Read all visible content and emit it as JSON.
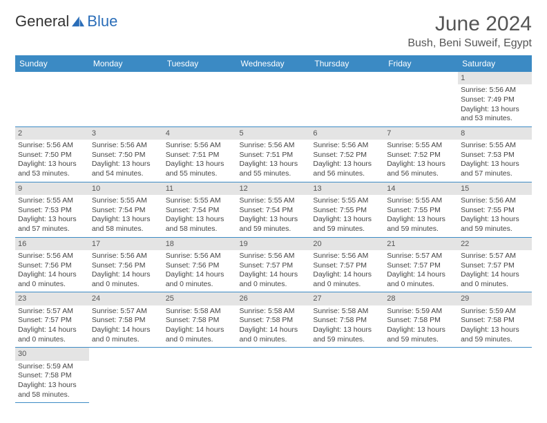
{
  "brand": {
    "part1": "General",
    "part2": "Blue"
  },
  "title": "June 2024",
  "location": "Bush, Beni Suweif, Egypt",
  "colors": {
    "header_bg": "#3b8ac4",
    "daynum_bg": "#e4e4e4",
    "rule": "#3b8ac4"
  },
  "days": [
    "Sunday",
    "Monday",
    "Tuesday",
    "Wednesday",
    "Thursday",
    "Friday",
    "Saturday"
  ],
  "cells": [
    {
      "n": "",
      "r": "",
      "s": "",
      "d": ""
    },
    {
      "n": "",
      "r": "",
      "s": "",
      "d": ""
    },
    {
      "n": "",
      "r": "",
      "s": "",
      "d": ""
    },
    {
      "n": "",
      "r": "",
      "s": "",
      "d": ""
    },
    {
      "n": "",
      "r": "",
      "s": "",
      "d": ""
    },
    {
      "n": "",
      "r": "",
      "s": "",
      "d": ""
    },
    {
      "n": "1",
      "r": "Sunrise: 5:56 AM",
      "s": "Sunset: 7:49 PM",
      "d": "Daylight: 13 hours and 53 minutes."
    },
    {
      "n": "2",
      "r": "Sunrise: 5:56 AM",
      "s": "Sunset: 7:50 PM",
      "d": "Daylight: 13 hours and 53 minutes."
    },
    {
      "n": "3",
      "r": "Sunrise: 5:56 AM",
      "s": "Sunset: 7:50 PM",
      "d": "Daylight: 13 hours and 54 minutes."
    },
    {
      "n": "4",
      "r": "Sunrise: 5:56 AM",
      "s": "Sunset: 7:51 PM",
      "d": "Daylight: 13 hours and 55 minutes."
    },
    {
      "n": "5",
      "r": "Sunrise: 5:56 AM",
      "s": "Sunset: 7:51 PM",
      "d": "Daylight: 13 hours and 55 minutes."
    },
    {
      "n": "6",
      "r": "Sunrise: 5:56 AM",
      "s": "Sunset: 7:52 PM",
      "d": "Daylight: 13 hours and 56 minutes."
    },
    {
      "n": "7",
      "r": "Sunrise: 5:55 AM",
      "s": "Sunset: 7:52 PM",
      "d": "Daylight: 13 hours and 56 minutes."
    },
    {
      "n": "8",
      "r": "Sunrise: 5:55 AM",
      "s": "Sunset: 7:53 PM",
      "d": "Daylight: 13 hours and 57 minutes."
    },
    {
      "n": "9",
      "r": "Sunrise: 5:55 AM",
      "s": "Sunset: 7:53 PM",
      "d": "Daylight: 13 hours and 57 minutes."
    },
    {
      "n": "10",
      "r": "Sunrise: 5:55 AM",
      "s": "Sunset: 7:54 PM",
      "d": "Daylight: 13 hours and 58 minutes."
    },
    {
      "n": "11",
      "r": "Sunrise: 5:55 AM",
      "s": "Sunset: 7:54 PM",
      "d": "Daylight: 13 hours and 58 minutes."
    },
    {
      "n": "12",
      "r": "Sunrise: 5:55 AM",
      "s": "Sunset: 7:54 PM",
      "d": "Daylight: 13 hours and 59 minutes."
    },
    {
      "n": "13",
      "r": "Sunrise: 5:55 AM",
      "s": "Sunset: 7:55 PM",
      "d": "Daylight: 13 hours and 59 minutes."
    },
    {
      "n": "14",
      "r": "Sunrise: 5:55 AM",
      "s": "Sunset: 7:55 PM",
      "d": "Daylight: 13 hours and 59 minutes."
    },
    {
      "n": "15",
      "r": "Sunrise: 5:56 AM",
      "s": "Sunset: 7:55 PM",
      "d": "Daylight: 13 hours and 59 minutes."
    },
    {
      "n": "16",
      "r": "Sunrise: 5:56 AM",
      "s": "Sunset: 7:56 PM",
      "d": "Daylight: 14 hours and 0 minutes."
    },
    {
      "n": "17",
      "r": "Sunrise: 5:56 AM",
      "s": "Sunset: 7:56 PM",
      "d": "Daylight: 14 hours and 0 minutes."
    },
    {
      "n": "18",
      "r": "Sunrise: 5:56 AM",
      "s": "Sunset: 7:56 PM",
      "d": "Daylight: 14 hours and 0 minutes."
    },
    {
      "n": "19",
      "r": "Sunrise: 5:56 AM",
      "s": "Sunset: 7:57 PM",
      "d": "Daylight: 14 hours and 0 minutes."
    },
    {
      "n": "20",
      "r": "Sunrise: 5:56 AM",
      "s": "Sunset: 7:57 PM",
      "d": "Daylight: 14 hours and 0 minutes."
    },
    {
      "n": "21",
      "r": "Sunrise: 5:57 AM",
      "s": "Sunset: 7:57 PM",
      "d": "Daylight: 14 hours and 0 minutes."
    },
    {
      "n": "22",
      "r": "Sunrise: 5:57 AM",
      "s": "Sunset: 7:57 PM",
      "d": "Daylight: 14 hours and 0 minutes."
    },
    {
      "n": "23",
      "r": "Sunrise: 5:57 AM",
      "s": "Sunset: 7:57 PM",
      "d": "Daylight: 14 hours and 0 minutes."
    },
    {
      "n": "24",
      "r": "Sunrise: 5:57 AM",
      "s": "Sunset: 7:58 PM",
      "d": "Daylight: 14 hours and 0 minutes."
    },
    {
      "n": "25",
      "r": "Sunrise: 5:58 AM",
      "s": "Sunset: 7:58 PM",
      "d": "Daylight: 14 hours and 0 minutes."
    },
    {
      "n": "26",
      "r": "Sunrise: 5:58 AM",
      "s": "Sunset: 7:58 PM",
      "d": "Daylight: 14 hours and 0 minutes."
    },
    {
      "n": "27",
      "r": "Sunrise: 5:58 AM",
      "s": "Sunset: 7:58 PM",
      "d": "Daylight: 13 hours and 59 minutes."
    },
    {
      "n": "28",
      "r": "Sunrise: 5:59 AM",
      "s": "Sunset: 7:58 PM",
      "d": "Daylight: 13 hours and 59 minutes."
    },
    {
      "n": "29",
      "r": "Sunrise: 5:59 AM",
      "s": "Sunset: 7:58 PM",
      "d": "Daylight: 13 hours and 59 minutes."
    },
    {
      "n": "30",
      "r": "Sunrise: 5:59 AM",
      "s": "Sunset: 7:58 PM",
      "d": "Daylight: 13 hours and 58 minutes."
    },
    {
      "n": "",
      "r": "",
      "s": "",
      "d": ""
    },
    {
      "n": "",
      "r": "",
      "s": "",
      "d": ""
    },
    {
      "n": "",
      "r": "",
      "s": "",
      "d": ""
    },
    {
      "n": "",
      "r": "",
      "s": "",
      "d": ""
    },
    {
      "n": "",
      "r": "",
      "s": "",
      "d": ""
    },
    {
      "n": "",
      "r": "",
      "s": "",
      "d": ""
    }
  ]
}
